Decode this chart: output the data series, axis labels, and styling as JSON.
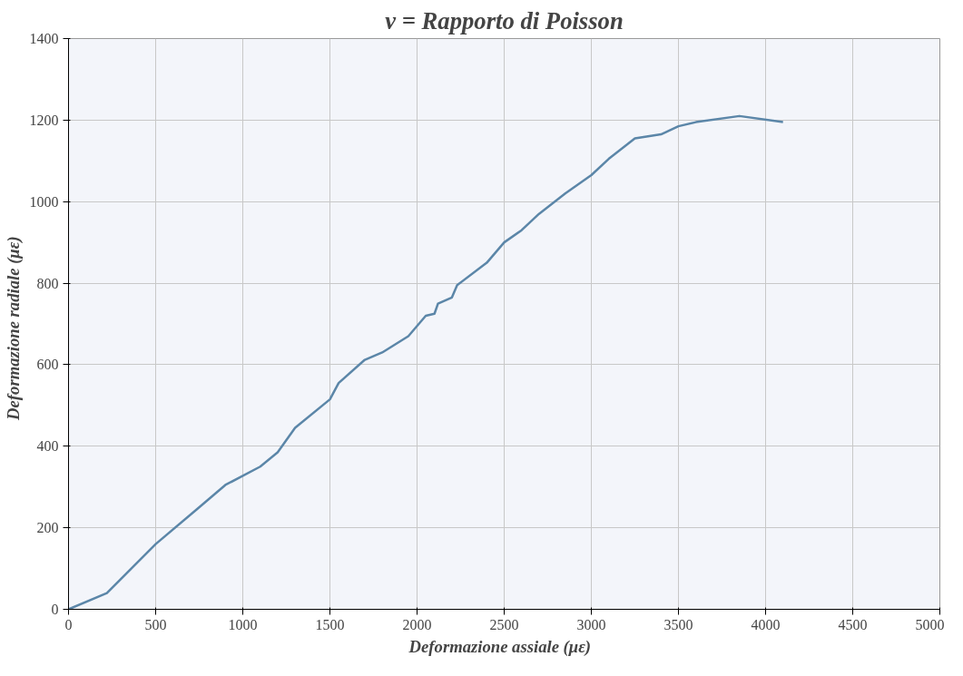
{
  "chart_data": {
    "type": "line",
    "title": "ν = Rapporto di Poisson",
    "xlabel": "Deformazione assiale   (με)",
    "ylabel": "Deformazione radiale   (με)",
    "x": [
      0,
      220,
      500,
      735,
      900,
      1100,
      1200,
      1300,
      1500,
      1550,
      1700,
      1800,
      1950,
      2050,
      2100,
      2120,
      2200,
      2230,
      2400,
      2500,
      2600,
      2700,
      2850,
      3000,
      3100,
      3250,
      3400,
      3500,
      3600,
      3850,
      4100
    ],
    "series": [
      {
        "color": "#5b86a8",
        "values": [
          0,
          40,
          160,
          245,
          305,
          350,
          385,
          445,
          515,
          555,
          612,
          630,
          670,
          720,
          725,
          750,
          765,
          795,
          850,
          900,
          930,
          970,
          1020,
          1065,
          1105,
          1155,
          1165,
          1185,
          1195,
          1210,
          1195
        ]
      }
    ],
    "xlim": [
      0,
      5000
    ],
    "ylim": [
      0,
      1400
    ],
    "xticks": [
      0,
      500,
      1000,
      1500,
      2000,
      2500,
      3000,
      3500,
      4000,
      4500,
      5000
    ],
    "yticks": [
      0,
      200,
      400,
      600,
      800,
      1000,
      1200,
      1400
    ],
    "grid": true,
    "marker": "none",
    "line_style": "solid"
  }
}
